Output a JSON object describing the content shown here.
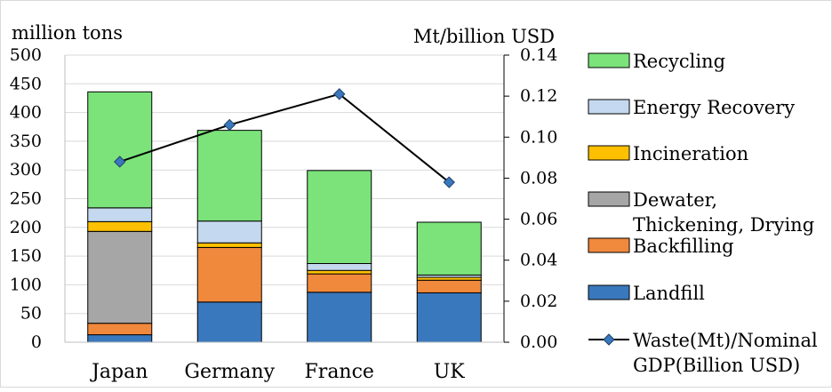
{
  "chart_data": {
    "type": "bar",
    "stacked": true,
    "categories": [
      "Japan",
      "Germany",
      "France",
      "UK"
    ],
    "left_axis": {
      "label": "million tons",
      "ylim": [
        0,
        500
      ],
      "ticks": [
        "0",
        "50",
        "100",
        "150",
        "200",
        "250",
        "300",
        "350",
        "400",
        "450",
        "500"
      ]
    },
    "right_axis": {
      "label": "Mt/billion USD",
      "ylim": [
        0,
        0.14
      ],
      "ticks": [
        "0.00",
        "0.02",
        "0.04",
        "0.06",
        "0.08",
        "0.10",
        "0.12",
        "0.14"
      ]
    },
    "grid": true,
    "legend_position": "right",
    "series": [
      {
        "name": "Landfill",
        "color": "#3a78bd",
        "values": [
          13,
          70,
          87,
          86
        ]
      },
      {
        "name": "Backfilling",
        "color": "#f0893c",
        "values": [
          20,
          95,
          32,
          22
        ]
      },
      {
        "name": "Dewater, Thickening, Drying",
        "color": "#a6a6a6",
        "values": [
          160,
          0,
          0,
          0
        ]
      },
      {
        "name": "Incineration",
        "color": "#ffc000",
        "values": [
          17,
          8,
          6,
          5
        ]
      },
      {
        "name": "Energy Recovery",
        "color": "#c4d9ef",
        "values": [
          24,
          38,
          12,
          4
        ]
      },
      {
        "name": "Recycling",
        "color": "#7be37a",
        "values": [
          202,
          158,
          162,
          92
        ]
      }
    ],
    "line": {
      "name": "Waste(Mt)/Nominal GDP(Billion USD)",
      "axis": "right",
      "color": "#000000",
      "marker_color": "#3a78bd",
      "values": [
        0.088,
        0.106,
        0.121,
        0.078
      ]
    }
  },
  "legend": [
    {
      "lines": [
        "Recycling"
      ],
      "color": "#7be37a"
    },
    {
      "lines": [
        "Energy Recovery"
      ],
      "color": "#c4d9ef"
    },
    {
      "lines": [
        "Incineration"
      ],
      "color": "#ffc000"
    },
    {
      "lines": [
        "Dewater,",
        "Thickening, Drying"
      ],
      "color": "#a6a6a6"
    },
    {
      "lines": [
        "Backfilling"
      ],
      "color": "#f0893c"
    },
    {
      "lines": [
        "Landfill"
      ],
      "color": "#3a78bd"
    },
    {
      "lines": [
        "Waste(Mt)/Nominal",
        "GDP(Billion USD)"
      ],
      "color": "line"
    }
  ]
}
